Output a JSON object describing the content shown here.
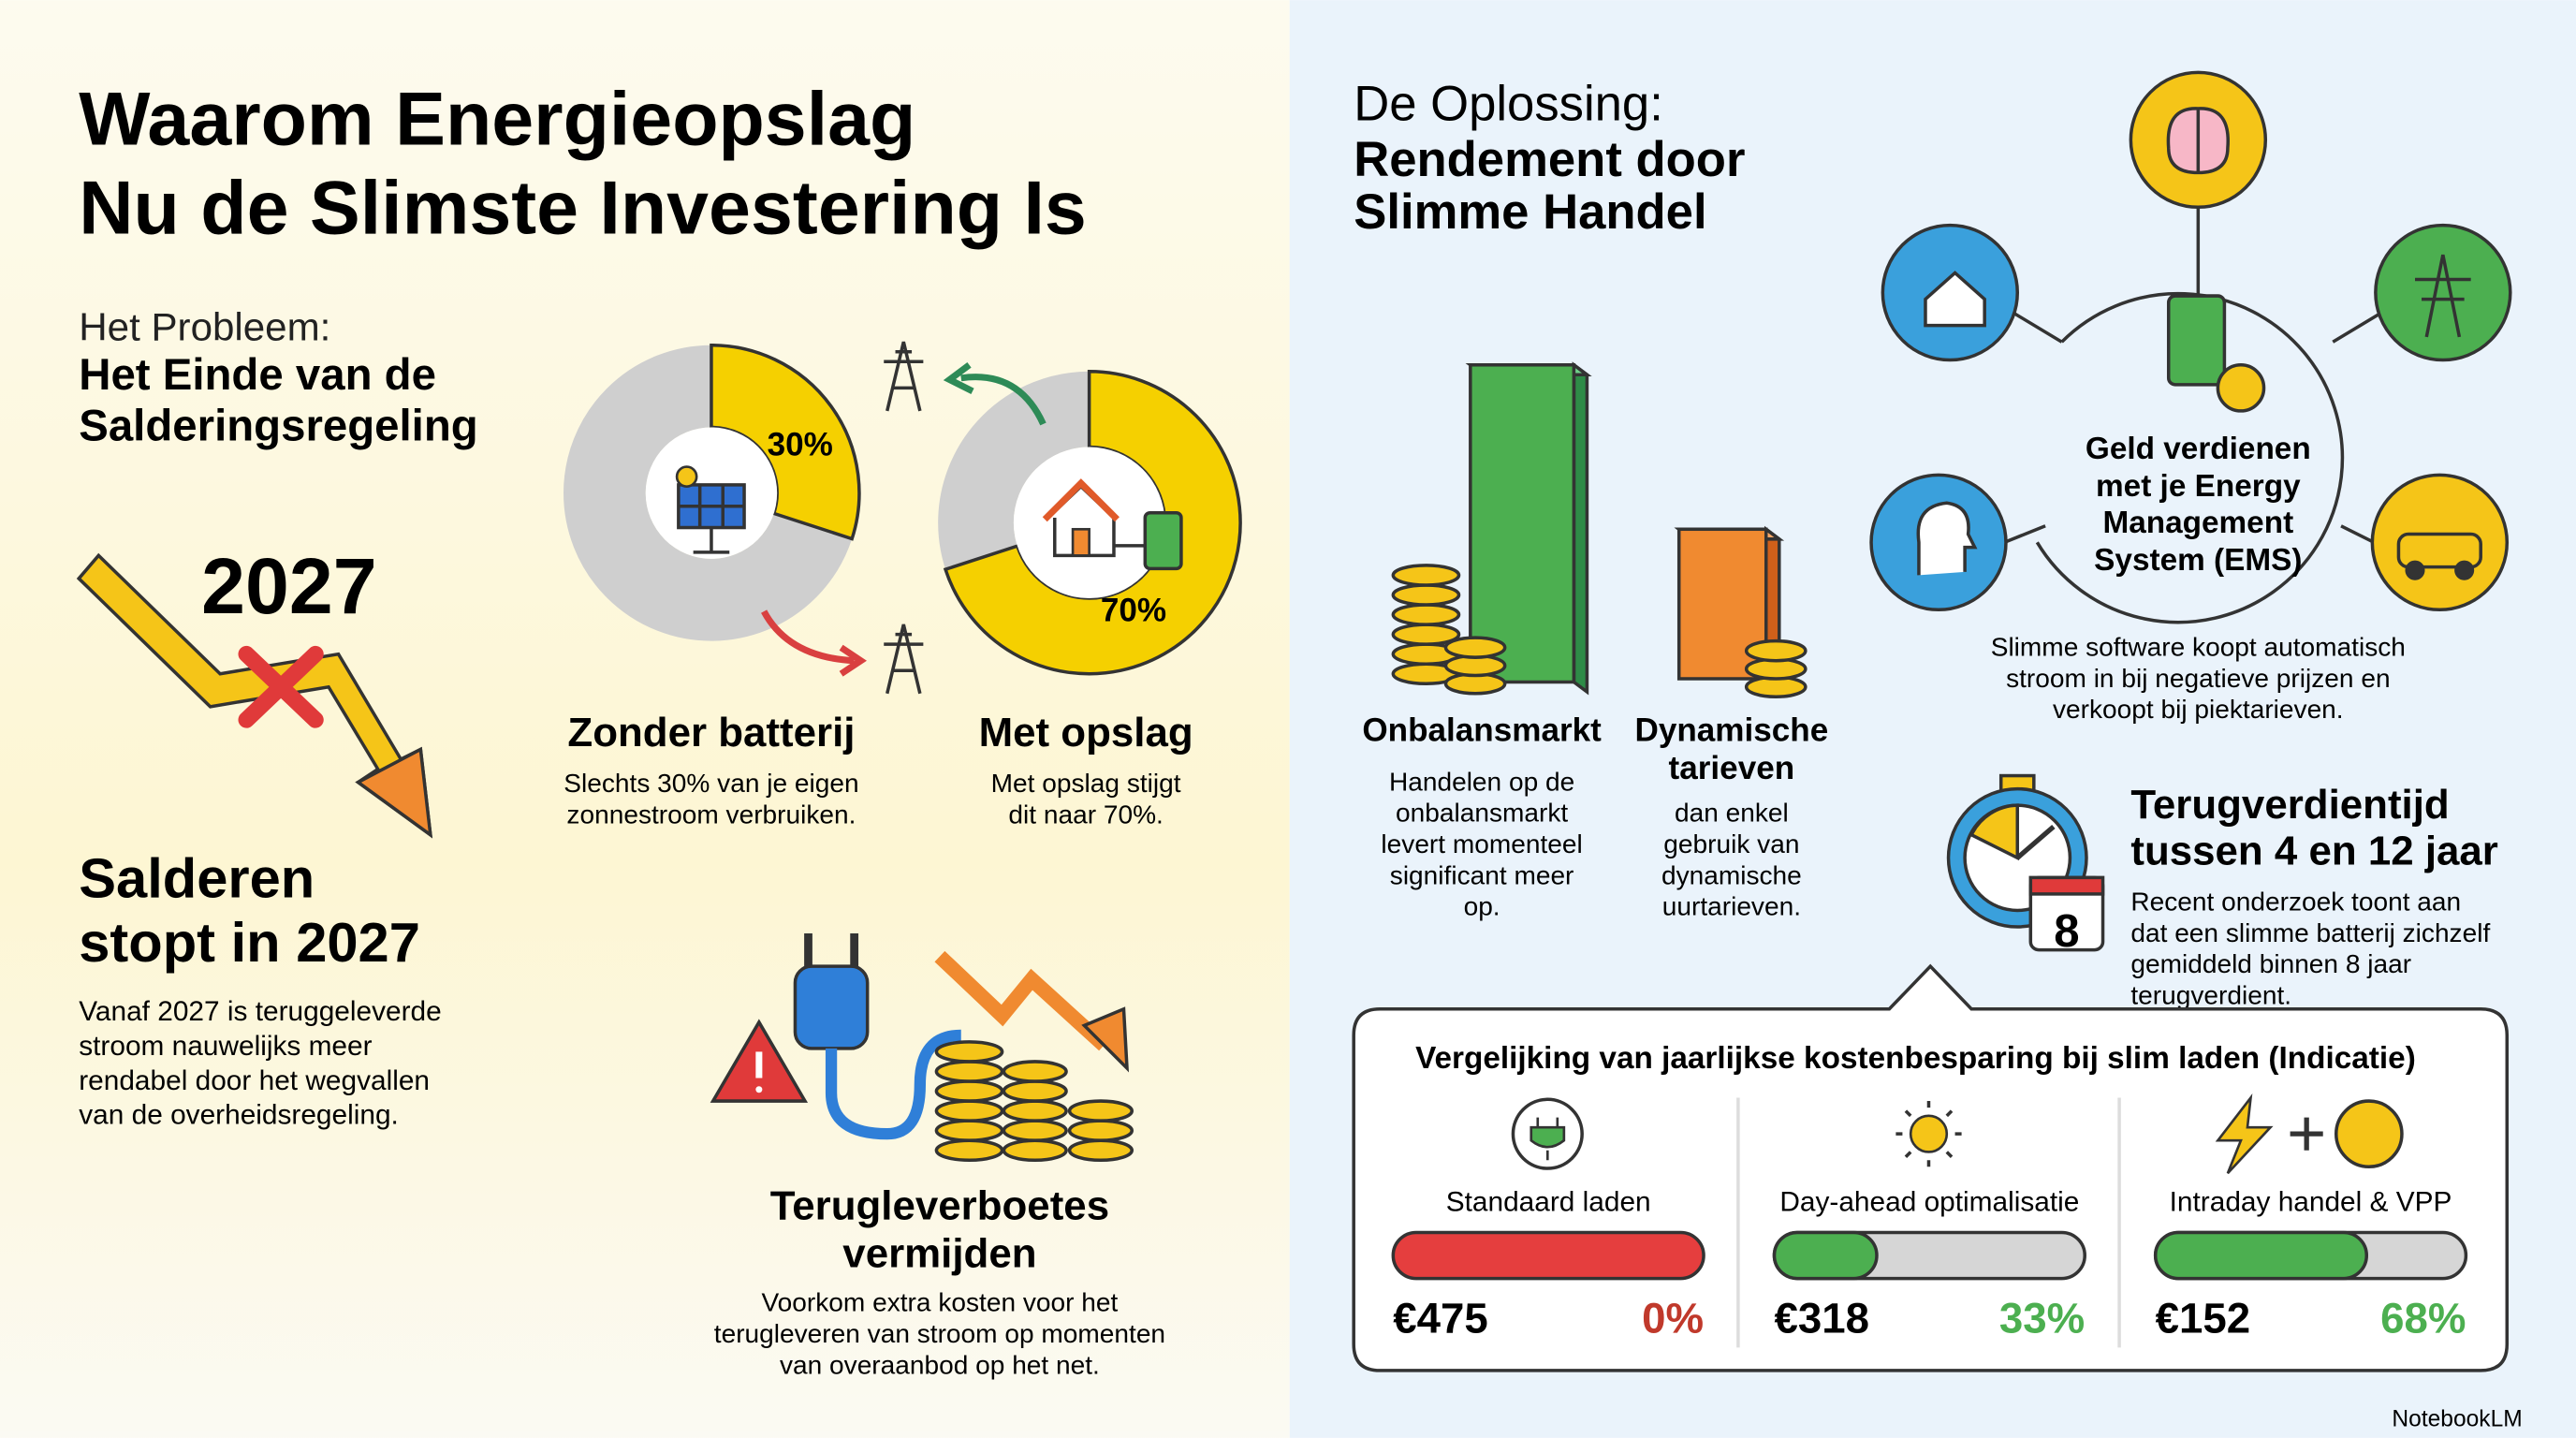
{
  "left": {
    "title": [
      "Waarom Energieopslag",
      "Nu de Slimste Investering Is"
    ],
    "problem": {
      "kicker": "Het Probleem:",
      "heading": [
        "Het Einde van de",
        "Salderingsregeling"
      ]
    },
    "year": "2027",
    "salderen": {
      "heading": [
        "Salderen",
        "stopt in 2027"
      ],
      "body": [
        "Vanaf 2027 is teruggeleverde",
        "stroom nauwelijks meer",
        "rendabel door het wegvallen",
        "van de overheidsregeling."
      ]
    },
    "donuts": [
      {
        "value": 30,
        "value_label": "30%",
        "color": "#f5d000",
        "title": "Zonder batterij",
        "body": [
          "Slechts 30% van je eigen",
          "zonnestroom verbruiken."
        ]
      },
      {
        "value": 70,
        "value_label": "70%",
        "color": "#f5d000",
        "title": "Met opslag",
        "body": [
          "Met opslag stijgt",
          "dit naar 70%."
        ]
      }
    ],
    "feedin": {
      "heading": [
        "Terugleverboetes",
        "vermijden"
      ],
      "body": [
        "Voorkom extra kosten voor het",
        "terugleveren van stroom op momenten",
        "van overaanbod op het net."
      ]
    }
  },
  "right": {
    "kicker": "De Oplossing:",
    "title": [
      "Rendement door",
      "Slimme Handel"
    ],
    "markets": [
      {
        "heading": [
          "Onbalansmarkt"
        ],
        "body": [
          "Handelen op de",
          "onbalansmarkt",
          "levert momenteel",
          "significant meer",
          "op."
        ]
      },
      {
        "heading": [
          "Dynamische",
          "tarieven"
        ],
        "body": [
          "dan enkel",
          "gebruik van",
          "dynamische",
          "uurtarieven."
        ]
      }
    ],
    "ems": {
      "heading": [
        "Geld verdienen",
        "met je Energy",
        "Management",
        "System (EMS)"
      ],
      "body": [
        "Slimme software koopt automatisch",
        "stroom in bij negatieve prijzen en",
        "verkoopt bij piektarieven."
      ]
    },
    "payback": {
      "heading": [
        "Terugverdientijd",
        "tussen 4 en 12 jaar"
      ],
      "body": [
        "Recent onderzoek toont aan",
        "dat een slimme batterij zichzelf",
        "gemiddeld binnen 8 jaar",
        "terugverdient."
      ],
      "calendar": "8"
    },
    "comparison": {
      "title": "Vergelijking van jaarlijkse kostenbesparing bij slim laden (Indicatie)",
      "items": [
        {
          "label": "Standaard laden",
          "cost": "€475",
          "value": 0,
          "value_label": "0%",
          "color": "#c0392b",
          "track_color": "#e53e3e"
        },
        {
          "label": "Day-ahead optimalisatie",
          "cost": "€318",
          "value": 33,
          "value_label": "33%",
          "color": "#4caf50",
          "track_color": "#d6d6d6"
        },
        {
          "label": "Intraday handel & VPP",
          "cost": "€152",
          "value": 68,
          "value_label": "68%",
          "color": "#4caf50",
          "track_color": "#d6d6d6"
        }
      ]
    }
  },
  "footer": "NotebookLM"
}
